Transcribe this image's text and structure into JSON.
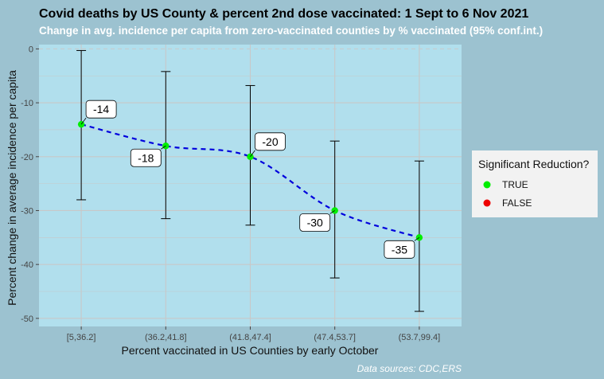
{
  "chart_data": {
    "type": "scatter",
    "title": "Covid deaths by US County & percent 2nd dose vaccinated: 1 Sept to 6 Nov 2021",
    "subtitle": "Change in avg. incidence per capita from zero-vaccinated counties by % vaccinated (95% conf.int.)",
    "xlabel": "Percent vaccinated in US Counties by early October",
    "ylabel": "Percent change in average incidence per capita",
    "categories": [
      "[5,36.2]",
      "(36.2,41.8]",
      "(41.8,47.4]",
      "(47.4,53.7]",
      "(53.7,99.4]"
    ],
    "values": [
      -14,
      -18,
      -20,
      -30,
      -35
    ],
    "ci_low": [
      -28,
      -31.5,
      -32.7,
      -42.5,
      -48.7
    ],
    "ci_high": [
      -0.3,
      -4.2,
      -6.8,
      -17.1,
      -20.8
    ],
    "data_labels": [
      "-14",
      "-18",
      "-20",
      "-30",
      "-35"
    ],
    "significant": [
      "TRUE",
      "TRUE",
      "TRUE",
      "TRUE",
      "TRUE"
    ],
    "ylim": [
      -51.5,
      0.8
    ],
    "yticks": [
      0,
      -10,
      -20,
      -30,
      -40,
      -50
    ],
    "ytick_labels": [
      "0",
      "-10",
      "-20",
      "-30",
      "-40",
      "-50"
    ],
    "trend_line": "dashed",
    "grid": true,
    "reference_line": 0,
    "legend": {
      "title": "Significant Reduction?",
      "placement": "right",
      "entries": [
        {
          "label": "TRUE",
          "color": "#00ee00"
        },
        {
          "label": "FALSE",
          "color": "#ee0000"
        }
      ]
    },
    "source": "Data sources: CDC,ERS",
    "colors": {
      "panel": "#b1dfed",
      "plot_background": "#9cc2d0",
      "trend": "#0000dd",
      "errorbar": "#000000",
      "grid": "#c8c8c8"
    }
  }
}
